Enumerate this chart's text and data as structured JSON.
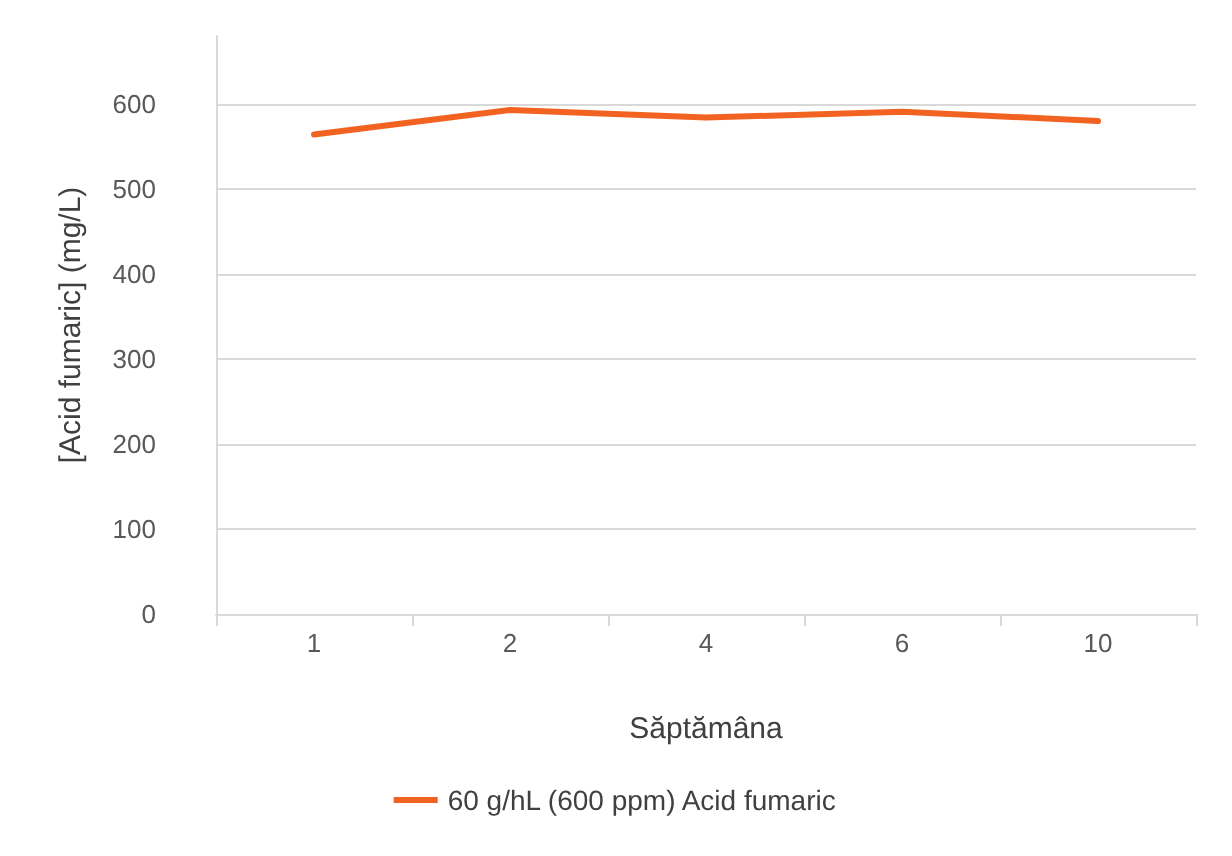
{
  "chart_data": {
    "type": "line",
    "xlabel": "Săptămâna",
    "ylabel": "[Acid fumaric] (mg/L)",
    "categories": [
      "1",
      "2",
      "4",
      "6",
      "10"
    ],
    "series": [
      {
        "name": "60 g/hL (600 ppm) Acid fumaric",
        "color": "#f26322",
        "values": [
          564,
          593,
          584,
          591,
          580
        ]
      }
    ],
    "ylim": [
      0,
      680
    ],
    "yticks": [
      0,
      100,
      200,
      300,
      400,
      500,
      600
    ],
    "grid": "y",
    "legend": "bottom",
    "marker": "none",
    "line_style": "solid"
  }
}
